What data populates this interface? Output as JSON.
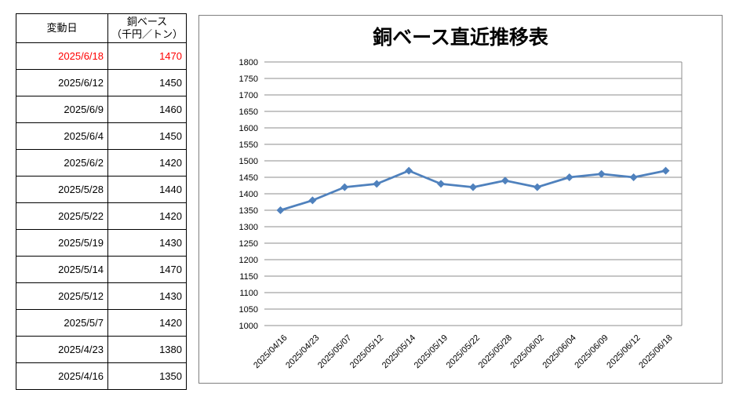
{
  "table": {
    "headers": {
      "date": "変動日",
      "price_line1": "銅ベース",
      "price_line2": "（千円／トン）"
    },
    "rows": [
      {
        "date": "2025/6/18",
        "value": "1470",
        "highlight": true
      },
      {
        "date": "2025/6/12",
        "value": "1450",
        "highlight": false
      },
      {
        "date": "2025/6/9",
        "value": "1460",
        "highlight": false
      },
      {
        "date": "2025/6/4",
        "value": "1450",
        "highlight": false
      },
      {
        "date": "2025/6/2",
        "value": "1420",
        "highlight": false
      },
      {
        "date": "2025/5/28",
        "value": "1440",
        "highlight": false
      },
      {
        "date": "2025/5/22",
        "value": "1420",
        "highlight": false
      },
      {
        "date": "2025/5/19",
        "value": "1430",
        "highlight": false
      },
      {
        "date": "2025/5/14",
        "value": "1470",
        "highlight": false
      },
      {
        "date": "2025/5/12",
        "value": "1430",
        "highlight": false
      },
      {
        "date": "2025/5/7",
        "value": "1420",
        "highlight": false
      },
      {
        "date": "2025/4/23",
        "value": "1380",
        "highlight": false
      },
      {
        "date": "2025/4/16",
        "value": "1350",
        "highlight": false
      }
    ],
    "highlight_color": "#ff0000"
  },
  "chart_data": {
    "type": "line",
    "title": "銅ベース直近推移表",
    "xlabel": "",
    "ylabel": "",
    "categories": [
      "2025/04/16",
      "2025/04/23",
      "2025/05/07",
      "2025/05/12",
      "2025/05/14",
      "2025/05/19",
      "2025/05/22",
      "2025/05/28",
      "2025/06/02",
      "2025/06/04",
      "2025/06/09",
      "2025/06/12",
      "2025/06/18"
    ],
    "values": [
      1350,
      1380,
      1420,
      1430,
      1470,
      1430,
      1420,
      1440,
      1420,
      1450,
      1460,
      1450,
      1470
    ],
    "ylim": [
      1000,
      1800
    ],
    "ytick_step": 50,
    "grid": true,
    "legend": "none",
    "marker": "diamond",
    "line_color": "#4F81BD",
    "gridline_color": "#8C8C8C",
    "axis_text_color": "#000000",
    "chart_border_color": "#808080"
  }
}
